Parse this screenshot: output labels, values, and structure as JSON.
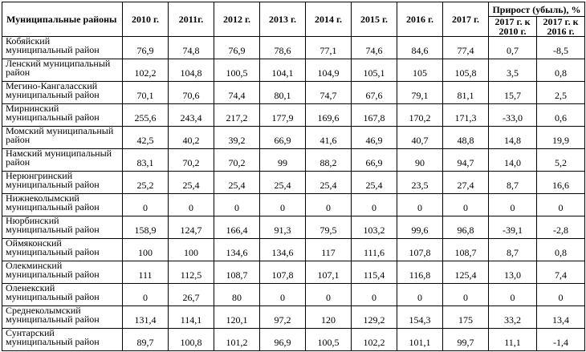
{
  "header": {
    "district": "Муниципальные районы",
    "years": [
      "2010 г.",
      "2011г.",
      "2012 г.",
      "2013 г.",
      "2014 г.",
      "2015 г.",
      "2016 г.",
      "2017 г."
    ],
    "growth": "Прирост (убыль), %",
    "growth_sub": [
      "2017 г. к 2010 г.",
      "2017 г. к 2016 г."
    ]
  },
  "rows": [
    {
      "name": "Кобяйский\nмуниципальный район",
      "values": [
        "76,9",
        "74,8",
        "76,9",
        "78,6",
        "77,1",
        "74,6",
        "84,6",
        "77,4",
        "0,7",
        "-8,5"
      ]
    },
    {
      "name": "Ленский муниципальный\nрайон",
      "values": [
        "102,2",
        "104,8",
        "100,5",
        "104,1",
        "104,9",
        "105,1",
        "105",
        "105,8",
        "3,5",
        "0,8"
      ]
    },
    {
      "name": "Мегино-Кангаласский\nмуниципальный район",
      "values": [
        "70,1",
        "70,6",
        "74,4",
        "80,1",
        "74,7",
        "67,6",
        "79,1",
        "81,1",
        "15,7",
        "2,5"
      ]
    },
    {
      "name": "Мирнинский\nмуниципальный район",
      "values": [
        "255,6",
        "243,4",
        "217,2",
        "177,9",
        "169,6",
        "167,8",
        "170,2",
        "171,3",
        "-33,0",
        "0,6"
      ]
    },
    {
      "name": "Момский муниципальный\nрайон",
      "values": [
        "42,5",
        "40,2",
        "39,2",
        "66,9",
        "41,6",
        "46,9",
        "40,7",
        "48,8",
        "14,8",
        "19,9"
      ]
    },
    {
      "name": "Намский муниципальный\nрайон",
      "values": [
        "83,1",
        "70,2",
        "70,2",
        "99",
        "88,2",
        "66,9",
        "90",
        "94,7",
        "14,0",
        "5,2"
      ]
    },
    {
      "name": "Нерюнгринский\nмуниципальный район",
      "values": [
        "25,2",
        "25,4",
        "25,4",
        "25,4",
        "25,4",
        "25,4",
        "23,5",
        "27,4",
        "8,7",
        "16,6"
      ]
    },
    {
      "name": "Нижнеколымский\nмуниципальный район",
      "values": [
        "0",
        "0",
        "0",
        "0",
        "0",
        "0",
        "0",
        "0",
        "0",
        "0"
      ]
    },
    {
      "name": "Нюрбинский\nмуниципальный район",
      "values": [
        "158,9",
        "124,7",
        "166,4",
        "91,3",
        "79,5",
        "103,2",
        "99,6",
        "96,8",
        "-39,1",
        "-2,8"
      ]
    },
    {
      "name": "Оймяконский\nмуниципальный район",
      "values": [
        "100",
        "100",
        "134,6",
        "134,6",
        "117",
        "111,6",
        "107,8",
        "108,7",
        "8,7",
        "0,8"
      ]
    },
    {
      "name": "Олекминский\nмуниципальный район",
      "values": [
        "111",
        "112,5",
        "108,7",
        "107,8",
        "107,1",
        "115,4",
        "116,8",
        "125,4",
        "13,0",
        "7,4"
      ]
    },
    {
      "name": "Оленекский\nмуниципальный район",
      "values": [
        "0",
        "26,7",
        "80",
        "0",
        "0",
        "0",
        "0",
        "0",
        "0",
        "0"
      ]
    },
    {
      "name": "Среднеколымский\nмуниципальный район",
      "values": [
        "131,4",
        "114,1",
        "120,1",
        "97,2",
        "120",
        "129,2",
        "154,3",
        "175",
        "33,2",
        "13,4"
      ]
    },
    {
      "name": "Сунтарский\nмуниципальный район",
      "values": [
        "89,7",
        "100,8",
        "101,2",
        "96,9",
        "100,5",
        "102,2",
        "101,1",
        "99,7",
        "11,1",
        "-1,4"
      ]
    }
  ]
}
